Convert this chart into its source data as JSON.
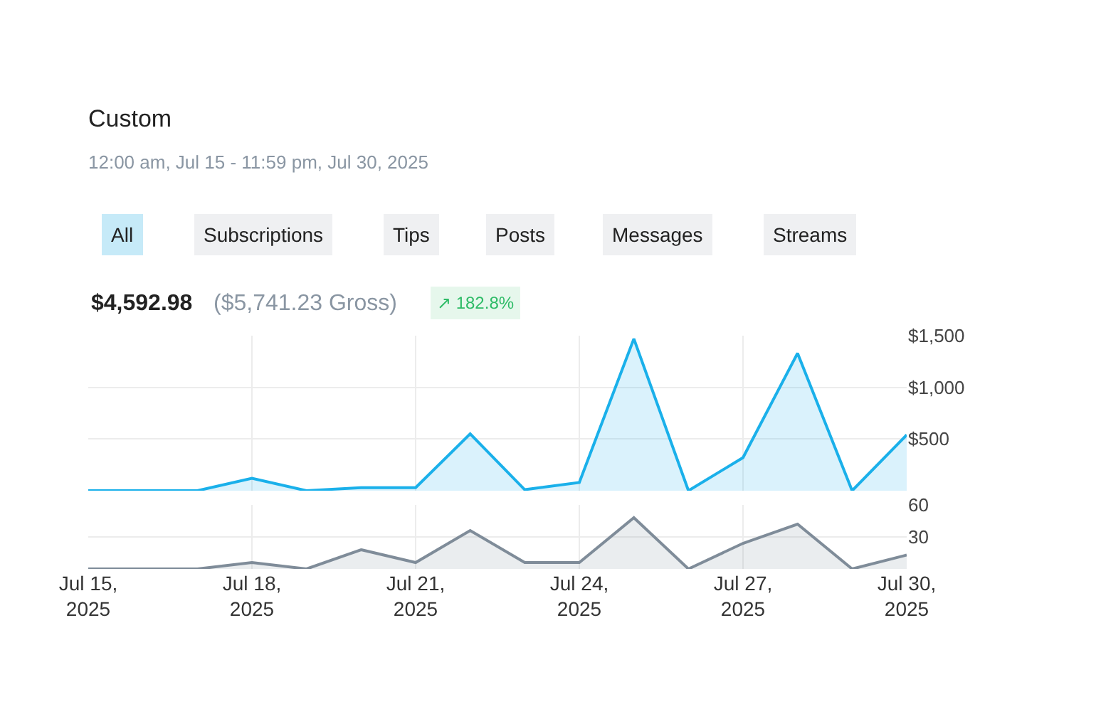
{
  "chart_data": [
    {
      "type": "area",
      "title": "Custom",
      "subtitle": "12:00 am, Jul 15 - 11:59 pm, Jul 30, 2025",
      "annotations": [
        "All",
        "Subscriptions",
        "Tips",
        "Posts",
        "Messages",
        "Streams",
        "$4,592.98",
        "($5,741.23 Gross)",
        "↗ 182.8%"
      ],
      "x": [
        "2025-07-15",
        "2025-07-16",
        "2025-07-17",
        "2025-07-18",
        "2025-07-19",
        "2025-07-20",
        "2025-07-21",
        "2025-07-22",
        "2025-07-23",
        "2025-07-24",
        "2025-07-25",
        "2025-07-26",
        "2025-07-27",
        "2025-07-28",
        "2025-07-29",
        "2025-07-30"
      ],
      "series": [
        {
          "color": "#1ab0ea",
          "values": [
            0,
            0,
            0,
            120,
            0,
            30,
            30,
            550,
            10,
            80,
            1470,
            0,
            320,
            1330,
            0,
            540
          ]
        }
      ],
      "xlim": [
        "2025-07-15",
        "2025-07-30"
      ],
      "xticks": [
        "2025-07-15",
        "2025-07-18",
        "2025-07-21",
        "2025-07-24",
        "2025-07-27",
        "2025-07-30"
      ],
      "ylim": [
        0,
        1500
      ],
      "yticks": [
        {
          "value": 500,
          "label": "$500"
        },
        {
          "value": 1000,
          "label": "$1,000"
        },
        {
          "value": 1500,
          "label": "$1,500"
        }
      ],
      "grid": true,
      "tick_labels": "y",
      "marker": "none"
    },
    {
      "type": "area",
      "x": [
        "2025-07-15",
        "2025-07-16",
        "2025-07-17",
        "2025-07-18",
        "2025-07-19",
        "2025-07-20",
        "2025-07-21",
        "2025-07-22",
        "2025-07-23",
        "2025-07-24",
        "2025-07-25",
        "2025-07-26",
        "2025-07-27",
        "2025-07-28",
        "2025-07-29",
        "2025-07-30"
      ],
      "series": [
        {
          "color": "#7f8c99",
          "values": [
            0,
            0,
            0,
            6,
            0,
            18,
            6,
            36,
            6,
            6,
            48,
            0,
            24,
            42,
            0,
            13
          ]
        }
      ],
      "xlim": [
        "2025-07-15",
        "2025-07-30"
      ],
      "xticks": [
        {
          "value": "2025-07-15",
          "label": "Jul 15,\n2025"
        },
        {
          "value": "2025-07-18",
          "label": "Jul 18,\n2025"
        },
        {
          "value": "2025-07-21",
          "label": "Jul 21,\n2025"
        },
        {
          "value": "2025-07-24",
          "label": "Jul 24,\n2025"
        },
        {
          "value": "2025-07-27",
          "label": "Jul 27,\n2025"
        },
        {
          "value": "2025-07-30",
          "label": "Jul 30,\n2025"
        }
      ],
      "ylim": [
        0,
        60
      ],
      "yticks": [
        30,
        60
      ],
      "grid": true,
      "marker": "none"
    }
  ]
}
